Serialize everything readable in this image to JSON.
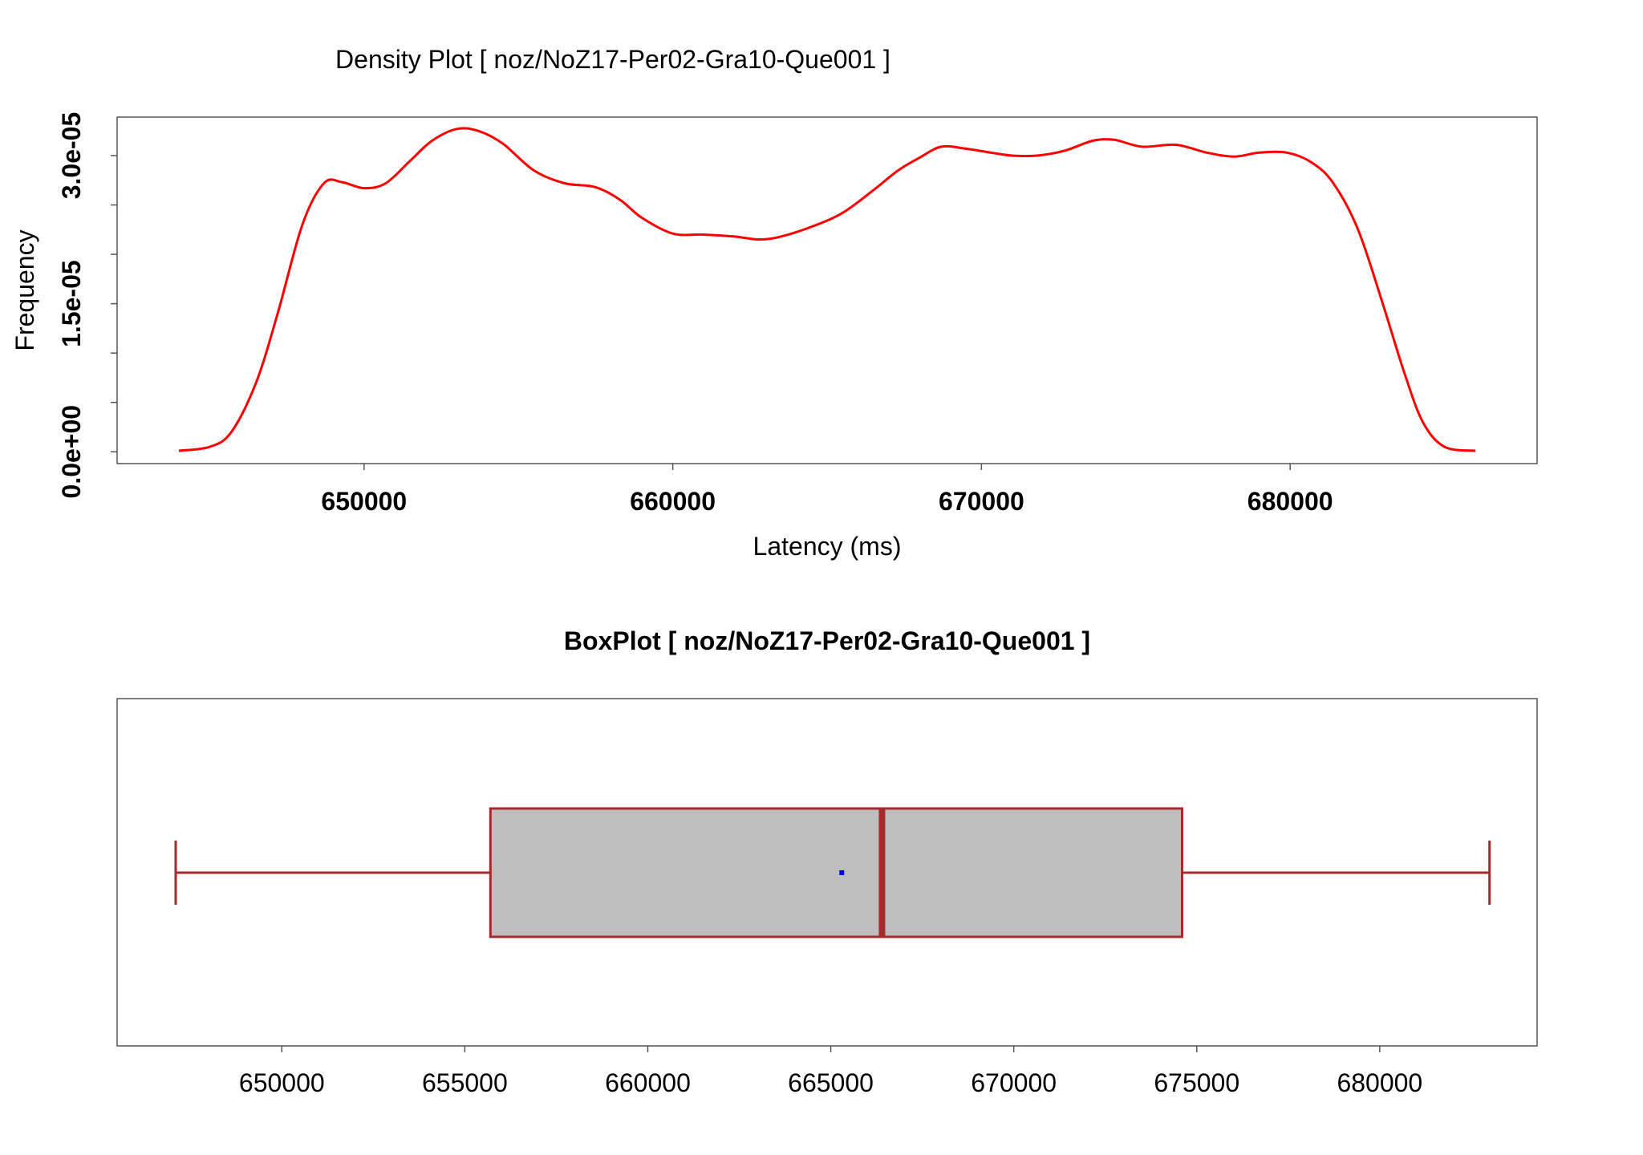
{
  "colors": {
    "density_line": "#ff0000",
    "box_stroke": "#a52a2a",
    "box_fill": "#bebebe",
    "mean_point": "#0000ff",
    "frame": "#555555"
  },
  "chart_data": [
    {
      "type": "line",
      "title": "Density Plot [ noz/NoZ17-Per02-Gra10-Que001 ]",
      "xlabel": "Latency (ms)",
      "ylabel": "Frequency",
      "xlim": [
        642000,
        688000
      ],
      "ylim": [
        -1.2e-06,
        3.39e-05
      ],
      "x_ticks": [
        650000,
        660000,
        670000,
        680000
      ],
      "x_tick_labels": [
        "650000",
        "660000",
        "670000",
        "680000"
      ],
      "y_ticks": [
        0,
        5e-06,
        1e-05,
        1.5e-05,
        2e-05,
        2.5e-05,
        3e-05
      ],
      "y_tick_labels": [
        "0.0e+00",
        "",
        "",
        "1.5e-05",
        "",
        "",
        "3.0e-05"
      ],
      "grid": false,
      "series": [
        {
          "x": [
            644000,
            645000,
            645700,
            646500,
            647200,
            648000,
            648700,
            649300,
            650000,
            650700,
            651500,
            652200,
            653000,
            653700,
            654500,
            655500,
            656500,
            657500,
            658300,
            659000,
            660000,
            661000,
            662000,
            662800,
            663500,
            664500,
            665500,
            666500,
            667300,
            668000,
            668700,
            669500,
            670300,
            671000,
            671800,
            672700,
            673600,
            674300,
            675200,
            676300,
            677300,
            678200,
            679000,
            679900,
            680700,
            681400,
            682200,
            683000,
            683700,
            684300,
            685000,
            686000
          ],
          "y": [
            1e-07,
            5e-07,
            2e-06,
            7e-06,
            1.4e-05,
            2.3e-05,
            2.72e-05,
            2.73e-05,
            2.67e-05,
            2.72e-05,
            2.95e-05,
            3.15e-05,
            3.27e-05,
            3.25e-05,
            3.12e-05,
            2.85e-05,
            2.72e-05,
            2.68e-05,
            2.55e-05,
            2.37e-05,
            2.21e-05,
            2.2e-05,
            2.18e-05,
            2.15e-05,
            2.18e-05,
            2.28e-05,
            2.42e-05,
            2.65e-05,
            2.85e-05,
            2.98e-05,
            3.09e-05,
            3.07e-05,
            3.03e-05,
            3e-05,
            3e-05,
            3.05e-05,
            3.15e-05,
            3.16e-05,
            3.09e-05,
            3.11e-05,
            3.03e-05,
            2.99e-05,
            3.03e-05,
            3.03e-05,
            2.93e-05,
            2.72e-05,
            2.25e-05,
            1.5e-05,
            8e-06,
            3e-06,
            5e-07,
            1e-07
          ]
        }
      ]
    },
    {
      "type": "boxplot",
      "title": "BoxPlot [ noz/NoZ17-Per02-Gra10-Que001 ]",
      "xlim": [
        645500,
        684300
      ],
      "x_ticks": [
        650000,
        655000,
        660000,
        665000,
        670000,
        675000,
        680000
      ],
      "x_tick_labels": [
        "650000",
        "655000",
        "660000",
        "665000",
        "670000",
        "675000",
        "680000"
      ],
      "whisker_low": 647100,
      "q1": 655700,
      "median": 666400,
      "q3": 674600,
      "whisker_high": 683000,
      "mean": 665300
    }
  ]
}
